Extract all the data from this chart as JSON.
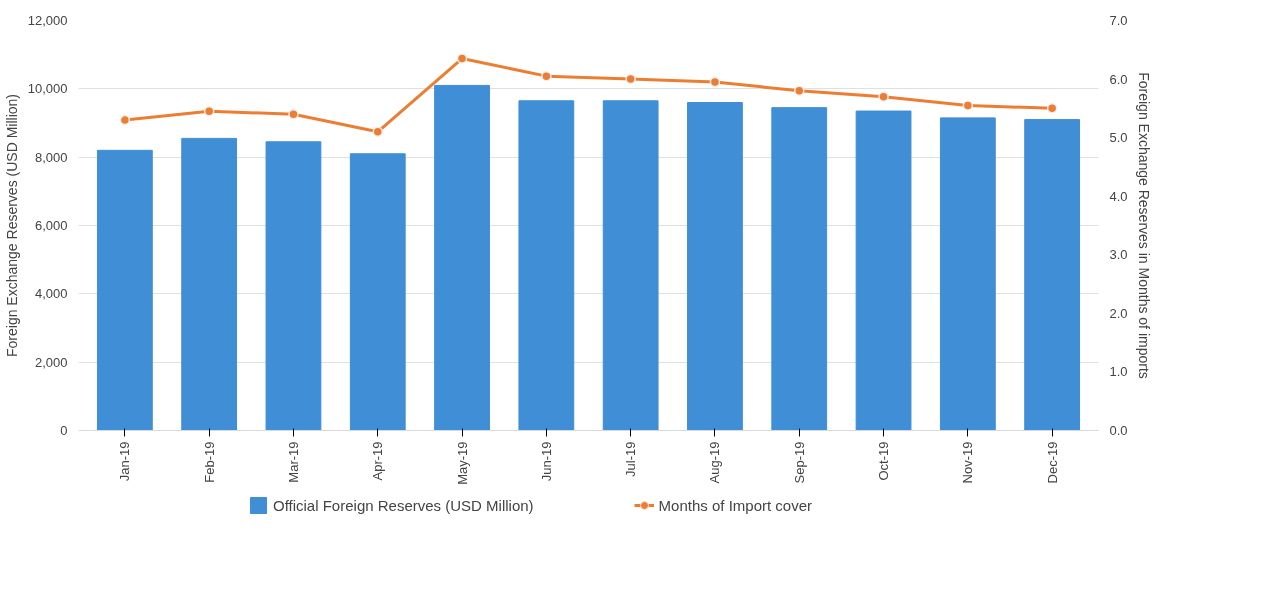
{
  "chart_data": {
    "type": "bar",
    "categories": [
      "Jan-19",
      "Feb-19",
      "Mar-19",
      "Apr-19",
      "May-19",
      "Jun-19",
      "Jul-19",
      "Aug-19",
      "Sep-19",
      "Oct-19",
      "Nov-19",
      "Dec-19"
    ],
    "ylabel": "Foreign Exchange Reserves (USD Million)",
    "y2label": "Foreign Exchange Reserves in Months of imports",
    "series": [
      {
        "name": "Official Foreign Reserves (USD Million)",
        "color": "#3f8ed6",
        "values": [
          8200,
          8550,
          8450,
          8100,
          10100,
          9650,
          9650,
          9600,
          9450,
          9350,
          9150,
          9100
        ]
      },
      {
        "name": "Months of Import cover",
        "type": "line",
        "axis": "y2",
        "color": "#ed7d31",
        "marker": "circle",
        "values": [
          5.3,
          5.45,
          5.4,
          5.1,
          6.35,
          6.05,
          6.0,
          5.95,
          5.8,
          5.7,
          5.55,
          5.5
        ]
      }
    ],
    "ylim": [
      0,
      12000
    ],
    "yticks": [
      {
        "value": 0,
        "label": "0"
      },
      {
        "value": 2000,
        "label": "2,000"
      },
      {
        "value": 4000,
        "label": "4,000"
      },
      {
        "value": 6000,
        "label": "6,000"
      },
      {
        "value": 8000,
        "label": "8,000"
      },
      {
        "value": 10000,
        "label": "10,000"
      },
      {
        "value": 12000,
        "label": "12,000"
      }
    ],
    "y2lim": [
      0,
      7
    ],
    "y2ticks": [
      {
        "value": 0,
        "label": "0.0"
      },
      {
        "value": 1,
        "label": "1.0"
      },
      {
        "value": 2,
        "label": "2.0"
      },
      {
        "value": 3,
        "label": "3.0"
      },
      {
        "value": 4,
        "label": "4.0"
      },
      {
        "value": 5,
        "label": "5.0"
      },
      {
        "value": 6,
        "label": "6.0"
      },
      {
        "value": 7,
        "label": "7.0"
      }
    ],
    "grid": "y",
    "legend": "bottom"
  }
}
